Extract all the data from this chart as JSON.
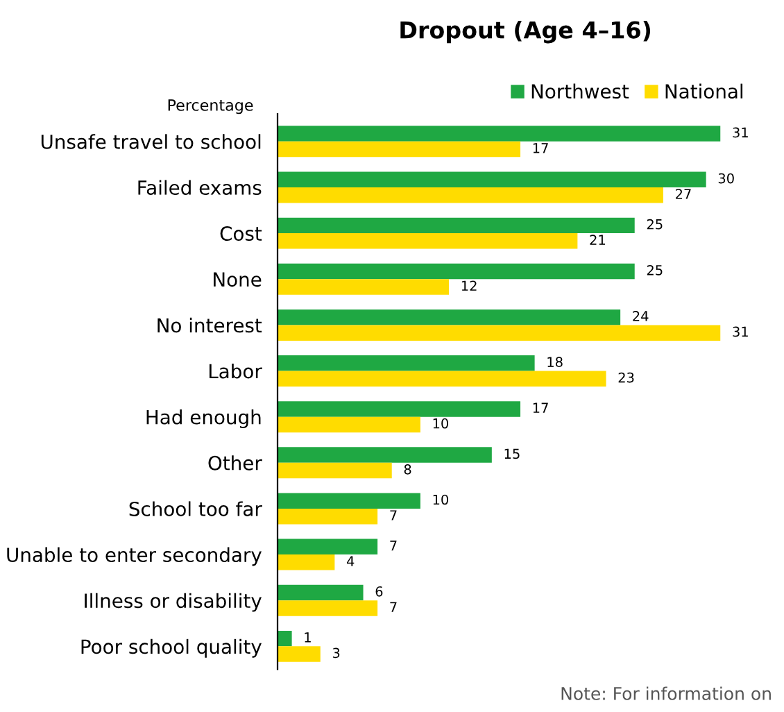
{
  "chart_data": {
    "type": "bar",
    "orientation": "horizontal",
    "title": "Dropout (Age 4–16)",
    "xlabel": "Percentage",
    "categories": [
      "Unsafe travel to school",
      "Failed exams",
      "Cost",
      "None",
      "No interest",
      "Labor",
      "Had enough",
      "Other",
      "School too far",
      "Unable to enter secondary",
      "Illness or disability",
      "Poor school quality"
    ],
    "series": [
      {
        "name": "Northwest",
        "color": "#1fa843",
        "values": [
          31,
          30,
          25,
          25,
          24,
          18,
          17,
          15,
          10,
          7,
          6,
          1
        ]
      },
      {
        "name": "National",
        "color": "#ffdc00",
        "values": [
          17,
          27,
          21,
          12,
          31,
          23,
          10,
          8,
          7,
          4,
          7,
          3
        ]
      }
    ],
    "data_labels": true,
    "legend": "top right",
    "tick_labels": "y",
    "grid": false,
    "annotations": [
      "Note: For information on"
    ]
  }
}
